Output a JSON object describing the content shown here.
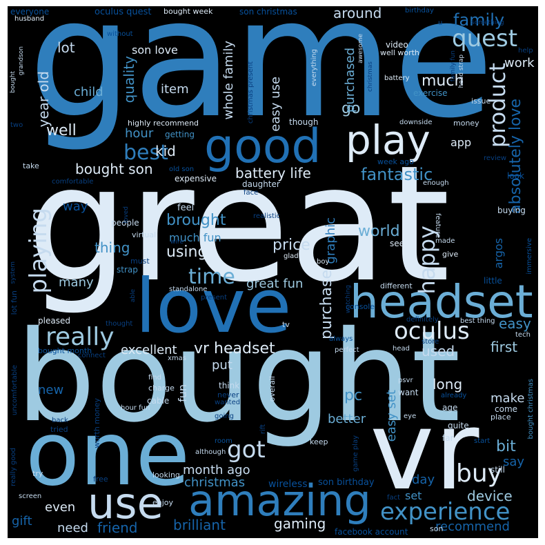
{
  "words": {
    "game": "game",
    "great": "great",
    "bought": "bought",
    "vr": "vr",
    "one": "one",
    "love": "love",
    "headset": "headset",
    "amazing": "amazing",
    "use": "use",
    "good": "good",
    "play": "play",
    "quest": "quest",
    "product": "product",
    "experience": "experience",
    "buy": "buy",
    "oculus": "oculus",
    "really": "really",
    "got": "got",
    "playing": "playing",
    "time": "time",
    "best": "best",
    "happy": "happy",
    "absolutely_love": "absolutely love",
    "family": "family",
    "bought_son": "bought son",
    "battery_life": "battery life",
    "fantastic": "fantastic",
    "world": "world",
    "price": "price",
    "brought": "brought",
    "much_fun": "much fun",
    "using": "using",
    "graphic": "graphic",
    "purchase": "purchase",
    "great_fun": "great fun",
    "vr_headset": "vr headset",
    "excellent": "excellent",
    "used": "used",
    "first": "first",
    "easy": "easy",
    "pc": "pc",
    "easy_set": "easy set",
    "long": "long",
    "make": "make",
    "bit": "bit",
    "say": "say",
    "device": "device",
    "recommend": "recommend",
    "brilliant": "brilliant",
    "gaming": "gaming",
    "month_ago": "month ago",
    "christmas": "christmas",
    "friend": "friend",
    "need": "need",
    "even": "even",
    "gift": "gift",
    "set": "set",
    "day": "day",
    "son_birthday": "son birthday",
    "wireless": "wireless",
    "facebook_account": "facebook account",
    "son": "son",
    "lot": "lot",
    "son_love": "son love",
    "item": "item",
    "child": "child",
    "quality": "quality",
    "year_old": "year old",
    "well": "well",
    "hour": "hour",
    "kid": "kid",
    "whole_family": "whole family",
    "easy_use": "easy use",
    "go": "go",
    "purchased": "purchased",
    "much": "much",
    "work": "work",
    "app": "app",
    "around": "around",
    "thing": "thing",
    "many": "many",
    "way": "way",
    "new": "new",
    "put": "put",
    "fun": "fun",
    "better": "better",
    "argos": "argos",
    "really_good": "really good",
    "everyone": "everyone",
    "oculus_quest": "oculus quest",
    "bought_week": "bought week",
    "son_christmas": "son christmas",
    "birthday": "birthday",
    "husband": "husband",
    "without": "without",
    "video": "video",
    "well_worth": "well worth",
    "battery": "battery",
    "exercise": "exercise",
    "issue": "issue",
    "highly_recommend": "highly recommend",
    "getting": "getting",
    "though": "though",
    "money": "money",
    "downside": "downside",
    "expensive": "expensive",
    "daughter": "daughter",
    "week_ago": "week ago",
    "review": "review",
    "look": "look",
    "enough": "enough",
    "feel": "feel",
    "buying": "buying",
    "people": "people",
    "virtual": "virtual",
    "feature": "feature",
    "made": "made",
    "give": "give",
    "glad": "glad",
    "boy": "boy",
    "see": "see",
    "must": "must",
    "strap": "strap",
    "standalone": "standalone",
    "different": "different",
    "little": "little",
    "pleased": "pleased",
    "thought": "thought",
    "tv": "tv",
    "console": "console",
    "definitely": "definitely",
    "best_thing": "best thing",
    "tech": "tech",
    "always": "always",
    "store": "store",
    "perfect": "perfect",
    "head": "head",
    "xmas": "xmas",
    "connect": "connect",
    "bought_month": "bought month",
    "find": "find",
    "charge": "charge",
    "cable": "cable",
    "hour_fun": "hour fun",
    "think": "think",
    "never": "never",
    "wanted": "wanted",
    "overall": "overall",
    "psvr": "psvr",
    "want": "want",
    "age": "age",
    "already": "already",
    "come": "come",
    "place": "place",
    "eye": "eye",
    "quite": "quite",
    "going": "going",
    "rift": "rift",
    "tried": "tried",
    "back": "back",
    "room": "room",
    "although": "although",
    "keep": "keep",
    "far": "far",
    "start": "start",
    "still": "still",
    "game_play": "game play",
    "looking": "looking",
    "free": "free",
    "try": "try",
    "screen": "screen",
    "enjoy": "enjoy",
    "fact": "fact",
    "bought_christmas": "bought christmas",
    "lot_fun": "lot fun",
    "system": "system",
    "able": "able",
    "uncomfortable": "uncomfortable",
    "worth_money": "worth money",
    "immersive": "immersive",
    "realistic": "realistic",
    "wire": "wire",
    "loved": "loved",
    "two": "two",
    "take": "take",
    "comfortable": "comfortable",
    "old_son": "old son",
    "face": "face",
    "help": "help",
    "something": "something",
    "awesome": "awesome",
    "everything": "everything",
    "family_fun": "family fun",
    "head_strap": "head strap",
    "grandson": "grandson",
    "present": "present",
    "christmas_present": "christmas present",
    "watching": "watching",
    "u": "u",
    "bought_small": "bought",
    "christmas_small": "christmas"
  },
  "colors": {
    "background": "#000000",
    "palette": [
      "#f7fbff",
      "#deebf7",
      "#c6dbef",
      "#9ecae1",
      "#6baed6",
      "#4292c6",
      "#2171b5",
      "#08519c",
      "#083f80"
    ]
  }
}
